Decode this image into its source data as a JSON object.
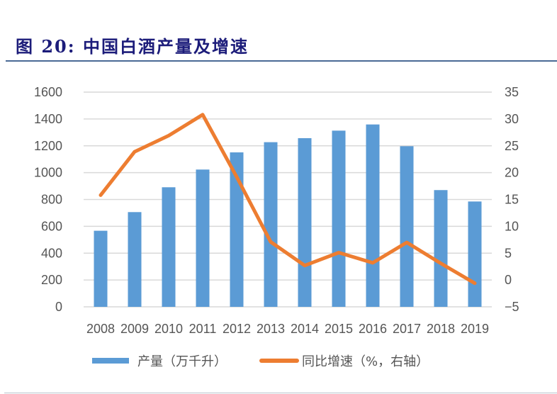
{
  "figure": {
    "title": "图 20: 中国白酒产量及增速"
  },
  "colors": {
    "bar": "#5b9bd5",
    "line": "#ed7d31",
    "title": "#1c1c7a",
    "grid": "#d9d9d9"
  },
  "legend": {
    "bar_label": "产量（万千升）",
    "line_label": "同比增速（%，右轴）"
  },
  "chart_data": {
    "type": "bar",
    "title": "中国白酒产量及增速",
    "categories": [
      "2008",
      "2009",
      "2010",
      "2011",
      "2012",
      "2013",
      "2014",
      "2015",
      "2016",
      "2017",
      "2018",
      "2019"
    ],
    "series": [
      {
        "name": "产量（万千升）",
        "type": "bar",
        "axis": "left",
        "values": [
          567,
          706,
          891,
          1023,
          1151,
          1227,
          1257,
          1313,
          1359,
          1197,
          870,
          785
        ]
      },
      {
        "name": "同比增速（%，右轴）",
        "type": "line",
        "axis": "right",
        "values": [
          15.8,
          23.9,
          26.9,
          30.8,
          19.2,
          7.1,
          2.7,
          5.1,
          3.2,
          7.0,
          3.1,
          -0.6
        ]
      }
    ],
    "xlabel": "",
    "ylabel": "",
    "ylim": [
      0,
      1600
    ],
    "yticks": [
      0,
      200,
      400,
      600,
      800,
      1000,
      1200,
      1400,
      1600
    ],
    "y2lim": [
      -5,
      35
    ],
    "y2ticks": [
      -5,
      0,
      5,
      10,
      15,
      20,
      25,
      30,
      35
    ],
    "grid": true,
    "legend_position": "bottom"
  }
}
